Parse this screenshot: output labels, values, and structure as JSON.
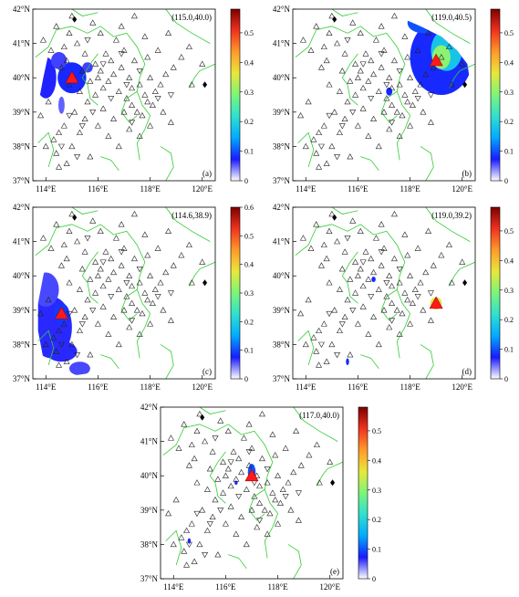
{
  "axis": {
    "x_ticks": [
      "114°E",
      "116°E",
      "118°E",
      "120°E"
    ],
    "y_ticks": [
      "37°N",
      "38°N",
      "39°N",
      "40°N",
      "41°N",
      "42°N"
    ],
    "x_values": [
      114,
      116,
      118,
      120
    ],
    "y_values": [
      37,
      38,
      39,
      40,
      41,
      42
    ],
    "lon_range": [
      113.5,
      120.5
    ],
    "lat_range": [
      37,
      42
    ]
  },
  "colorbar_palette": [
    "#ffffff",
    "#1a1aff",
    "#00aaff",
    "#2fe0d0",
    "#7cf57a",
    "#e8e83a",
    "#ff9a2a",
    "#f0321e",
    "#7d0000"
  ],
  "panels": [
    {
      "id": "a",
      "letter": "(a)",
      "coord": "(115.0,40.0)",
      "source": [
        115.0,
        40.0
      ],
      "cbar_ticks": [
        "0",
        "0.1",
        "0.2",
        "0.3",
        "0.4",
        "0.5"
      ],
      "cbar_values": [
        0,
        0.1,
        0.2,
        0.3,
        0.4,
        0.5
      ],
      "cbar_max": 0.58,
      "blobs": [
        {
          "lon": 115.0,
          "lat": 40.0,
          "rx": 0.55,
          "ry": 0.45,
          "level": 0.08
        },
        {
          "lon": 114.0,
          "lat": 40.0,
          "rx": 0.4,
          "ry": 0.6,
          "level": 0.07
        },
        {
          "lon": 114.5,
          "lat": 40.5,
          "rx": 0.3,
          "ry": 0.25,
          "level": 0.06
        },
        {
          "lon": 115.6,
          "lat": 40.3,
          "rx": 0.2,
          "ry": 0.15,
          "level": 0.06
        },
        {
          "lon": 114.6,
          "lat": 39.2,
          "rx": 0.12,
          "ry": 0.25,
          "level": 0.05
        }
      ]
    },
    {
      "id": "b",
      "letter": "(b)",
      "coord": "(119.0,40.5)",
      "source": [
        119.0,
        40.5
      ],
      "cbar_ticks": [
        "0",
        "0.1",
        "0.2",
        "0.3",
        "0.4",
        "0.5"
      ],
      "cbar_values": [
        0,
        0.1,
        0.2,
        0.3,
        0.4,
        0.5
      ],
      "cbar_max": 0.58,
      "blobs": [
        {
          "lon": 119.2,
          "lat": 40.6,
          "rx": 1.2,
          "ry": 1.1,
          "level": 0.08
        },
        {
          "lon": 119.4,
          "lat": 40.8,
          "rx": 0.6,
          "ry": 0.6,
          "level": 0.18
        },
        {
          "lon": 119.2,
          "lat": 40.6,
          "rx": 0.35,
          "ry": 0.35,
          "level": 0.3
        },
        {
          "lon": 120.2,
          "lat": 41.0,
          "rx": 0.3,
          "ry": 0.5,
          "level": 0.5
        },
        {
          "lon": 118.5,
          "lat": 41.6,
          "rx": 0.6,
          "ry": 0.3,
          "level": 0.1
        },
        {
          "lon": 117.2,
          "lat": 39.6,
          "rx": 0.12,
          "ry": 0.12,
          "level": 0.08
        }
      ]
    },
    {
      "id": "c",
      "letter": "(c)",
      "coord": "(114.6,38.9)",
      "source": [
        114.6,
        38.9
      ],
      "cbar_ticks": [
        "0",
        "0.1",
        "0.2",
        "0.3",
        "0.4",
        "0.5",
        "0.6"
      ],
      "cbar_values": [
        0,
        0.1,
        0.2,
        0.3,
        0.4,
        0.5,
        0.6
      ],
      "cbar_max": 0.6,
      "blobs": [
        {
          "lon": 114.2,
          "lat": 38.5,
          "rx": 0.8,
          "ry": 0.9,
          "level": 0.07
        },
        {
          "lon": 114.0,
          "lat": 39.6,
          "rx": 0.5,
          "ry": 0.5,
          "level": 0.06
        },
        {
          "lon": 114.6,
          "lat": 37.8,
          "rx": 0.6,
          "ry": 0.3,
          "level": 0.07
        },
        {
          "lon": 115.3,
          "lat": 37.3,
          "rx": 0.4,
          "ry": 0.2,
          "level": 0.06
        },
        {
          "lon": 114.6,
          "lat": 38.9,
          "rx": 0.3,
          "ry": 0.3,
          "level": 0.09
        }
      ]
    },
    {
      "id": "d",
      "letter": "(d)",
      "coord": "(119.0,39.2)",
      "source": [
        119.0,
        39.2
      ],
      "cbar_ticks": [
        "0",
        "0.1",
        "0.2",
        "0.3",
        "0.4",
        "0.5"
      ],
      "cbar_values": [
        0,
        0.1,
        0.2,
        0.3,
        0.4,
        0.5
      ],
      "cbar_max": 0.58,
      "blobs": [
        {
          "lon": 119.0,
          "lat": 39.2,
          "rx": 0.22,
          "ry": 0.18,
          "level": 0.35
        },
        {
          "lon": 116.6,
          "lat": 39.9,
          "rx": 0.08,
          "ry": 0.08,
          "level": 0.08
        },
        {
          "lon": 115.6,
          "lat": 37.5,
          "rx": 0.06,
          "ry": 0.1,
          "level": 0.08
        }
      ]
    },
    {
      "id": "e",
      "letter": "(e)",
      "coord": "(117.0,40.0)",
      "source": [
        117.0,
        40.0
      ],
      "cbar_ticks": [
        "0",
        "0.1",
        "0.2",
        "0.3",
        "0.4",
        "0.5"
      ],
      "cbar_values": [
        0,
        0.1,
        0.2,
        0.3,
        0.4,
        0.5
      ],
      "cbar_max": 0.58,
      "blobs": [
        {
          "lon": 117.0,
          "lat": 40.1,
          "rx": 0.15,
          "ry": 0.25,
          "level": 0.1
        },
        {
          "lon": 116.4,
          "lat": 39.8,
          "rx": 0.06,
          "ry": 0.06,
          "level": 0.08
        },
        {
          "lon": 114.6,
          "lat": 38.1,
          "rx": 0.06,
          "ry": 0.08,
          "level": 0.08
        }
      ]
    }
  ],
  "stations_up": [
    [
      114.3,
      38.2
    ],
    [
      114.5,
      38.4
    ],
    [
      114.7,
      38.6
    ],
    [
      114.4,
      37.8
    ],
    [
      114.8,
      37.5
    ],
    [
      115.0,
      38.0
    ],
    [
      115.3,
      38.4
    ],
    [
      115.5,
      38.8
    ],
    [
      115.1,
      39.0
    ],
    [
      115.6,
      39.3
    ],
    [
      115.9,
      39.5
    ],
    [
      116.2,
      39.7
    ],
    [
      116.4,
      39.9
    ],
    [
      116.6,
      40.1
    ],
    [
      116.8,
      39.6
    ],
    [
      117.1,
      39.4
    ],
    [
      117.3,
      39.2
    ],
    [
      117.5,
      39.0
    ],
    [
      117.7,
      38.9
    ],
    [
      117.9,
      39.3
    ],
    [
      118.2,
      39.6
    ],
    [
      118.4,
      39.8
    ],
    [
      118.6,
      40.1
    ],
    [
      118.9,
      40.3
    ],
    [
      119.2,
      40.6
    ],
    [
      119.5,
      40.9
    ],
    [
      117.4,
      40.5
    ],
    [
      117.0,
      40.8
    ],
    [
      116.7,
      41.1
    ],
    [
      116.3,
      40.7
    ],
    [
      115.9,
      40.4
    ],
    [
      115.5,
      40.7
    ],
    [
      115.2,
      41.0
    ],
    [
      114.9,
      41.3
    ],
    [
      114.7,
      40.9
    ],
    [
      114.4,
      41.5
    ],
    [
      115.8,
      41.6
    ],
    [
      116.9,
      41.5
    ],
    [
      117.8,
      41.2
    ],
    [
      118.3,
      40.8
    ],
    [
      118.0,
      40.0
    ],
    [
      117.6,
      39.8
    ],
    [
      117.2,
      40.0
    ],
    [
      116.9,
      40.3
    ],
    [
      116.5,
      40.5
    ],
    [
      116.1,
      40.2
    ],
    [
      115.7,
      39.9
    ],
    [
      115.3,
      39.6
    ],
    [
      114.9,
      39.8
    ],
    [
      114.6,
      40.3
    ],
    [
      114.2,
      40.8
    ],
    [
      113.9,
      41.1
    ],
    [
      114.1,
      39.3
    ],
    [
      113.8,
      38.9
    ],
    [
      114.0,
      38.0
    ],
    [
      116.0,
      38.6
    ],
    [
      116.4,
      38.3
    ],
    [
      116.8,
      38.0
    ],
    [
      117.2,
      38.5
    ],
    [
      117.6,
      38.3
    ],
    [
      118.0,
      38.6
    ],
    [
      118.5,
      39.0
    ],
    [
      118.8,
      38.7
    ],
    [
      119.6,
      39.8
    ],
    [
      120.0,
      40.4
    ],
    [
      117.4,
      41.8
    ],
    [
      115.0,
      41.8
    ],
    [
      116.2,
      39.1
    ],
    [
      116.6,
      38.8
    ],
    [
      117.0,
      39.0
    ],
    [
      117.3,
      39.7
    ],
    [
      117.8,
      39.5
    ],
    [
      118.1,
      39.2
    ],
    [
      116.0,
      40.0
    ],
    [
      115.4,
      40.2
    ],
    [
      114.8,
      40.5
    ],
    [
      117.9,
      40.6
    ],
    [
      118.7,
      41.3
    ],
    [
      116.1,
      41.3
    ],
    [
      114.5,
      37.4
    ],
    [
      115.7,
      37.7
    ]
  ],
  "stations_down": [
    [
      114.6,
      38.0
    ],
    [
      115.2,
      37.7
    ],
    [
      116.5,
      39.4
    ],
    [
      117.1,
      39.8
    ],
    [
      117.6,
      40.2
    ],
    [
      116.2,
      40.4
    ],
    [
      115.8,
      39.0
    ],
    [
      118.3,
      39.4
    ],
    [
      117.3,
      38.7
    ],
    [
      114.9,
      38.9
    ],
    [
      115.6,
      41.1
    ],
    [
      118.8,
      39.5
    ],
    [
      116.9,
      40.7
    ],
    [
      115.4,
      38.6
    ]
  ],
  "diamonds": [
    [
      115.1,
      41.7
    ],
    [
      120.1,
      39.8
    ]
  ],
  "hull": [
    [
      114.2,
      37.3
    ],
    [
      113.9,
      37.6
    ],
    [
      113.7,
      38.4
    ],
    [
      113.7,
      39.2
    ],
    [
      113.9,
      40.0
    ],
    [
      114.1,
      40.7
    ],
    [
      114.0,
      41.4
    ],
    [
      114.6,
      41.8
    ],
    [
      115.4,
      42.0
    ],
    [
      116.4,
      42.0
    ],
    [
      117.5,
      41.8
    ],
    [
      118.4,
      41.5
    ],
    [
      119.2,
      41.2
    ],
    [
      119.8,
      40.8
    ],
    [
      120.2,
      40.4
    ],
    [
      120.3,
      39.9
    ],
    [
      119.8,
      39.5
    ],
    [
      119.1,
      39.0
    ],
    [
      118.8,
      38.6
    ],
    [
      118.2,
      38.2
    ],
    [
      117.6,
      37.8
    ],
    [
      116.9,
      37.5
    ],
    [
      116.0,
      37.2
    ],
    [
      115.1,
      37.1
    ]
  ],
  "borders": [
    [
      [
        113.6,
        40.6
      ],
      [
        114.1,
        40.9
      ],
      [
        114.4,
        41.4
      ],
      [
        115.0,
        41.5
      ],
      [
        115.6,
        41.3
      ],
      [
        116.1,
        41.5
      ],
      [
        116.6,
        41.2
      ],
      [
        117.1,
        41.3
      ],
      [
        117.5,
        40.9
      ],
      [
        117.8,
        40.4
      ],
      [
        117.6,
        40.0
      ],
      [
        117.5,
        39.6
      ],
      [
        117.7,
        39.2
      ],
      [
        118.0,
        38.9
      ],
      [
        117.8,
        38.5
      ],
      [
        117.5,
        38.1
      ],
      [
        117.6,
        37.6
      ]
    ],
    [
      [
        116.0,
        39.2
      ],
      [
        115.7,
        39.4
      ],
      [
        115.6,
        39.8
      ],
      [
        115.4,
        40.0
      ],
      [
        115.7,
        40.4
      ],
      [
        116.0,
        40.7
      ]
    ],
    [
      [
        117.5,
        39.6
      ],
      [
        117.1,
        39.4
      ],
      [
        116.9,
        39.0
      ],
      [
        117.2,
        38.7
      ],
      [
        117.5,
        38.9
      ]
    ],
    [
      [
        115.0,
        42.0
      ],
      [
        115.4,
        41.8
      ],
      [
        116.0,
        41.9
      ]
    ],
    [
      [
        118.6,
        42.0
      ],
      [
        119.0,
        41.6
      ],
      [
        119.6,
        41.3
      ],
      [
        120.3,
        41.0
      ]
    ],
    [
      [
        120.5,
        40.4
      ],
      [
        119.9,
        40.2
      ],
      [
        119.7,
        40.0
      ],
      [
        119.5,
        39.7
      ]
    ],
    [
      [
        118.4,
        38.0
      ],
      [
        118.8,
        37.8
      ],
      [
        118.9,
        37.4
      ],
      [
        118.6,
        37.0
      ]
    ],
    [
      [
        113.7,
        38.1
      ],
      [
        114.1,
        38.4
      ],
      [
        114.3,
        37.9
      ],
      [
        114.1,
        37.4
      ]
    ],
    [
      [
        116.1,
        37.7
      ],
      [
        116.5,
        37.6
      ],
      [
        116.8,
        37.3
      ]
    ]
  ]
}
